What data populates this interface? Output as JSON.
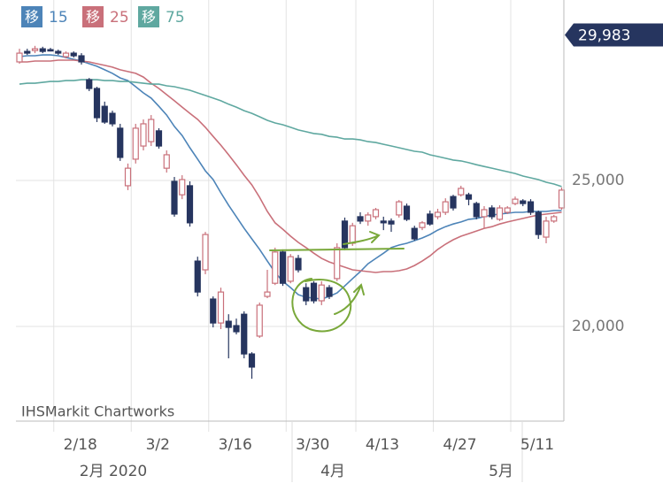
{
  "chart_data": {
    "type": "candlestick",
    "categories": [
      null,
      null,
      null,
      null,
      null,
      "2/18",
      null,
      null,
      null,
      null,
      null,
      null,
      null,
      null,
      null,
      "3/2",
      null,
      null,
      null,
      null,
      null,
      null,
      null,
      null,
      null,
      "3/16",
      null,
      null,
      null,
      null,
      null,
      null,
      null,
      null,
      null,
      "3/30",
      null,
      null,
      null,
      null,
      null,
      null,
      null,
      null,
      "4/13",
      null,
      null,
      null,
      null,
      null,
      null,
      null,
      null,
      null,
      "4/27",
      null,
      null,
      null,
      null,
      null,
      null,
      null,
      null,
      null,
      "5/11",
      null,
      null,
      null,
      null,
      null,
      null
    ],
    "open": [
      29060,
      29420,
      29450,
      29510,
      29480,
      29420,
      29240,
      29360,
      29270,
      28450,
      28150,
      27540,
      27300,
      26790,
      24820,
      25730,
      26180,
      26330,
      26700,
      25420,
      24970,
      24510,
      24820,
      22240,
      21940,
      20940,
      20120,
      20180,
      20030,
      20420,
      19060,
      19670,
      21030,
      21480,
      22550,
      21550,
      22330,
      21330,
      21480,
      20880,
      21330,
      21640,
      23610,
      22850,
      23760,
      23610,
      23760,
      23610,
      23610,
      23820,
      24120,
      23360,
      23390,
      23850,
      23760,
      23910,
      24450,
      24510,
      24510,
      24210,
      23760,
      24060,
      23670,
      23910,
      24210,
      24300,
      24270,
      23910,
      23060,
      23610,
      24060
    ],
    "high": [
      29510,
      29510,
      29610,
      29580,
      29540,
      29480,
      29420,
      29420,
      29360,
      28510,
      28210,
      27700,
      27390,
      26940,
      25580,
      26940,
      27090,
      27240,
      26790,
      26030,
      25120,
      25180,
      24970,
      22390,
      23240,
      21030,
      21330,
      20420,
      20270,
      20520,
      19120,
      20820,
      21940,
      22700,
      22640,
      22480,
      22450,
      21480,
      21550,
      21550,
      21420,
      22850,
      23730,
      23550,
      23910,
      23910,
      24060,
      23760,
      23700,
      24330,
      24210,
      23450,
      23610,
      23970,
      24030,
      24390,
      24510,
      24820,
      24580,
      24270,
      24120,
      24150,
      24150,
      24120,
      24450,
      24360,
      24360,
      23970,
      23760,
      23820,
      24760
    ],
    "low": [
      29000,
      29300,
      29360,
      29360,
      29420,
      29300,
      29180,
      29210,
      28970,
      28060,
      27000,
      26940,
      26850,
      25670,
      24670,
      25580,
      26030,
      26180,
      26090,
      25270,
      23760,
      24360,
      23420,
      21030,
      21790,
      19970,
      19910,
      18910,
      19730,
      18910,
      18210,
      19610,
      20970,
      21420,
      21390,
      21480,
      21850,
      20730,
      20790,
      20730,
      20940,
      21550,
      22610,
      22760,
      23510,
      23450,
      23670,
      23300,
      23240,
      23730,
      23610,
      22940,
      23300,
      23450,
      23670,
      23820,
      23970,
      24450,
      24150,
      23670,
      23360,
      23670,
      23610,
      23850,
      24150,
      24120,
      23820,
      23000,
      22850,
      23550,
      24000
    ],
    "close": [
      29360,
      29360,
      29510,
      29420,
      29450,
      29360,
      29360,
      29270,
      29060,
      28150,
      27150,
      27000,
      26940,
      25790,
      25420,
      26790,
      26940,
      27090,
      26180,
      25880,
      23850,
      25030,
      23550,
      21180,
      23150,
      20120,
      21180,
      19970,
      19820,
      19060,
      18610,
      20730,
      21180,
      22550,
      21480,
      22390,
      21940,
      20880,
      20880,
      21420,
      21030,
      22700,
      22700,
      23450,
      23610,
      23820,
      24000,
      23550,
      23510,
      24270,
      23670,
      23000,
      23550,
      23510,
      23910,
      24270,
      24060,
      24730,
      24360,
      23760,
      24000,
      23760,
      24060,
      24060,
      24360,
      24210,
      23910,
      23150,
      23610,
      23760,
      24670
    ],
    "up_color": "#c9707a",
    "down_color": "#26355f",
    "series": [
      {
        "name": "15",
        "tag": "移",
        "color": "#4d84b8",
        "values": [
          29240,
          29270,
          29270,
          29300,
          29300,
          29270,
          29210,
          29150,
          29090,
          29000,
          28910,
          28790,
          28670,
          28510,
          28420,
          28210,
          28000,
          27820,
          27540,
          27240,
          26850,
          26540,
          26120,
          25730,
          25330,
          25030,
          24580,
          24150,
          23760,
          23360,
          23000,
          22640,
          22240,
          21850,
          21550,
          21330,
          21090,
          21000,
          20970,
          20940,
          21030,
          21150,
          21390,
          21640,
          21880,
          22150,
          22330,
          22510,
          22700,
          22790,
          22850,
          22940,
          23030,
          23150,
          23300,
          23420,
          23510,
          23580,
          23670,
          23700,
          23760,
          23820,
          23850,
          23880,
          23910,
          23910,
          23940,
          23940,
          23940,
          23970,
          23970
        ]
      },
      {
        "name": "25",
        "tag": "移",
        "color": "#c9707a",
        "values": [
          29060,
          29060,
          29090,
          29090,
          29090,
          29120,
          29120,
          29120,
          29090,
          29060,
          29000,
          28940,
          28880,
          28790,
          28730,
          28670,
          28540,
          28330,
          28150,
          27940,
          27730,
          27510,
          27300,
          27090,
          26820,
          26510,
          26210,
          25880,
          25540,
          25180,
          24850,
          24420,
          23940,
          23550,
          23330,
          23090,
          22880,
          22700,
          22510,
          22330,
          22210,
          22120,
          22030,
          21940,
          21910,
          21880,
          21850,
          21880,
          21880,
          21910,
          21970,
          22090,
          22240,
          22420,
          22640,
          22820,
          22970,
          23090,
          23180,
          23270,
          23360,
          23420,
          23510,
          23580,
          23640,
          23700,
          23760,
          23820,
          23850,
          23880,
          23910
        ]
      },
      {
        "name": "75",
        "tag": "移",
        "color": "#5fa8a0",
        "values": [
          28300,
          28330,
          28330,
          28360,
          28390,
          28390,
          28420,
          28420,
          28450,
          28450,
          28450,
          28420,
          28420,
          28390,
          28390,
          28360,
          28330,
          28300,
          28300,
          28240,
          28210,
          28150,
          28090,
          28000,
          27910,
          27820,
          27730,
          27610,
          27510,
          27390,
          27300,
          27180,
          27060,
          26970,
          26910,
          26820,
          26730,
          26670,
          26610,
          26580,
          26510,
          26480,
          26420,
          26420,
          26390,
          26330,
          26300,
          26240,
          26180,
          26120,
          26060,
          26000,
          25970,
          25880,
          25820,
          25760,
          25700,
          25670,
          25610,
          25540,
          25480,
          25420,
          25360,
          25300,
          25240,
          25150,
          25090,
          25030,
          24940,
          24880,
          24790
        ]
      }
    ],
    "ylim": [
      16760,
      31180
    ],
    "yticks": [
      {
        "value": 20000,
        "label": "20,000"
      },
      {
        "value": 25000,
        "label": "25,000"
      }
    ],
    "grid": true,
    "last_price": {
      "value": 29983,
      "label": "29,983"
    },
    "source": "IHSMarkit Chartworks",
    "month_labels": [
      "2月 2020",
      "4月",
      "5月"
    ]
  }
}
